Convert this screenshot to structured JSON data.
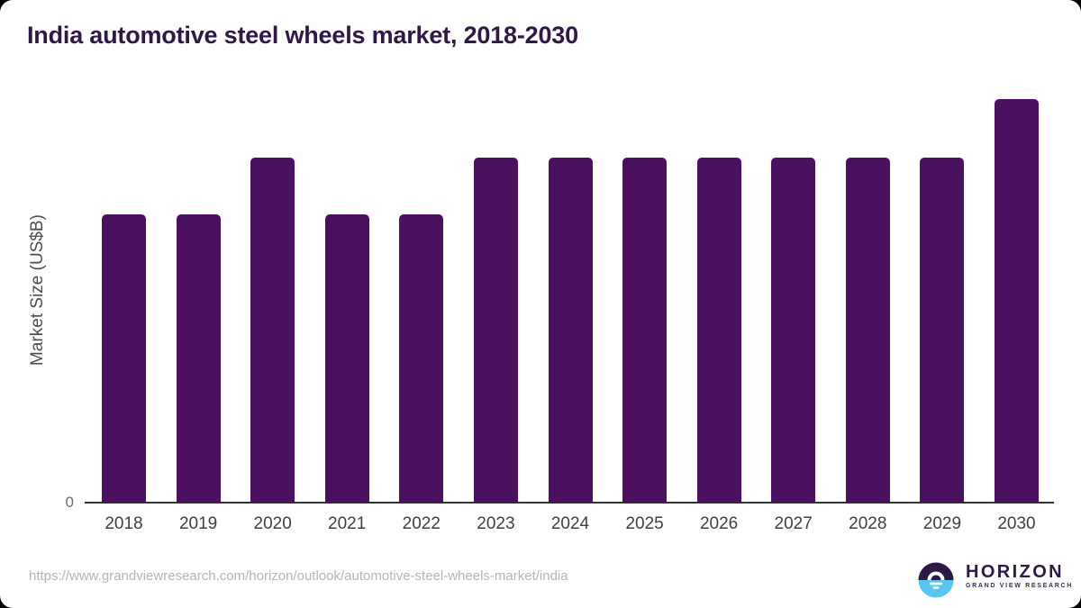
{
  "window": {
    "background": "#000000",
    "card_background": "#ffffff"
  },
  "chart_data": {
    "type": "bar",
    "title": "India automotive steel wheels market, 2018-2030",
    "categories": [
      "2018",
      "2019",
      "2020",
      "2021",
      "2022",
      "2023",
      "2024",
      "2025",
      "2026",
      "2027",
      "2028",
      "2029",
      "2030"
    ],
    "values": [
      0.715,
      0.715,
      0.855,
      0.715,
      0.715,
      0.855,
      0.855,
      0.855,
      0.855,
      0.855,
      0.855,
      0.855,
      1.0
    ],
    "values_note": "no numeric data labels shown; values estimated from bar heights, normalized to 2030 = 1.0",
    "xlabel": "",
    "ylabel": "Market Size (US$B)",
    "y_ticks": [
      "0"
    ],
    "ylim": [
      0,
      1.05
    ],
    "grid": false,
    "legend": false,
    "bar_color": "#4b1060",
    "title_color": "#2f1747",
    "axis_line_color": "#333333",
    "tick_label_color": "#3f3f3f",
    "zero_label_color": "#6e6e6e",
    "ylabel_color": "#4d4d4d"
  },
  "footer": {
    "source_url": "https://www.grandviewresearch.com/horizon/outlook/automotive-steel-wheels-market/india",
    "logo": {
      "name": "HORIZON",
      "subtitle": "GRAND VIEW RESEARCH",
      "icon": "sunset-over-water-icon",
      "icon_top_color": "#2e1a47",
      "icon_bottom_color": "#59c6f2",
      "icon_detail_color": "#ffffff",
      "text_color": "#2e1a47"
    }
  }
}
